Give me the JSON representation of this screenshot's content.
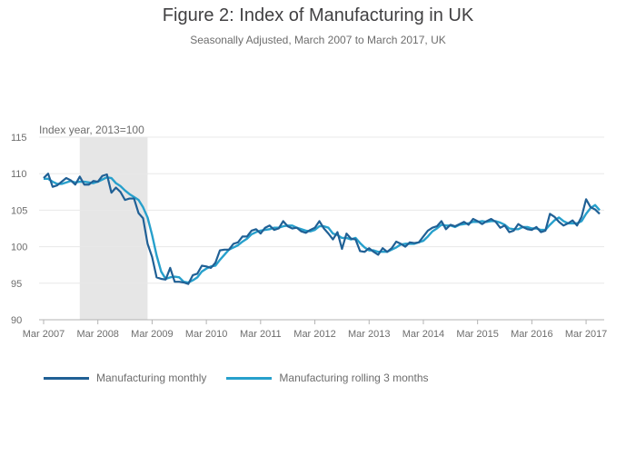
{
  "chart_data": {
    "type": "line",
    "title": "Figure 2: Index of Manufacturing in UK",
    "subtitle": "Seasonally Adjusted, March 2007 to March 2017, UK",
    "ylabel": "Index year, 2013=100",
    "ylim": [
      90,
      115
    ],
    "yticks": [
      90,
      95,
      100,
      105,
      110,
      115
    ],
    "xticks": [
      "Mar 2007",
      "Mar 2008",
      "Mar 2009",
      "Mar 2010",
      "Mar 2011",
      "Mar 2012",
      "Mar 2013",
      "Mar 2014",
      "Mar 2015",
      "Mar 2016",
      "Mar 2017"
    ],
    "recession_shade": {
      "start_month_index": 8,
      "end_month_index": 23
    },
    "series": [
      {
        "name": "Manufacturing monthly",
        "color": "#206095",
        "values": [
          109.4,
          110.0,
          108.2,
          108.4,
          108.9,
          109.4,
          109.1,
          108.5,
          109.6,
          108.5,
          108.5,
          109.0,
          108.9,
          109.7,
          109.9,
          107.4,
          108.1,
          107.5,
          106.4,
          106.6,
          106.6,
          104.6,
          103.9,
          100.4,
          98.6,
          95.8,
          95.6,
          95.5,
          97.1,
          95.2,
          95.2,
          95.1,
          94.9,
          96.1,
          96.3,
          97.4,
          97.3,
          97.1,
          97.8,
          99.5,
          99.6,
          99.6,
          100.4,
          100.6,
          101.4,
          101.4,
          102.2,
          102.4,
          101.8,
          102.6,
          102.9,
          102.3,
          102.5,
          103.5,
          102.8,
          102.5,
          102.6,
          102.1,
          101.9,
          102.3,
          102.6,
          103.5,
          102.5,
          101.8,
          101.0,
          102.0,
          99.7,
          101.8,
          101.1,
          101.0,
          99.4,
          99.3,
          99.8,
          99.3,
          98.9,
          99.8,
          99.3,
          99.8,
          100.7,
          100.4,
          100.0,
          100.6,
          100.5,
          100.6,
          101.4,
          102.2,
          102.6,
          102.8,
          103.5,
          102.4,
          103.0,
          102.8,
          103.1,
          103.4,
          103.0,
          103.8,
          103.5,
          103.1,
          103.5,
          103.8,
          103.4,
          102.6,
          102.9,
          102.0,
          102.2,
          103.1,
          102.7,
          102.4,
          102.3,
          102.7,
          102.0,
          102.2,
          104.5,
          104.1,
          103.4,
          102.9,
          103.2,
          103.6,
          102.9,
          104.1,
          106.5,
          105.4,
          105.1,
          104.5
        ]
      },
      {
        "name": "Manufacturing rolling 3 months",
        "color": "#27a0cc",
        "values": [
          109.3,
          109.3,
          108.9,
          108.6,
          108.6,
          108.8,
          109.0,
          108.8,
          108.9,
          108.9,
          108.8,
          108.7,
          108.9,
          109.2,
          109.5,
          109.4,
          108.7,
          108.3,
          107.7,
          107.2,
          106.8,
          106.4,
          105.4,
          104.0,
          101.6,
          98.8,
          96.6,
          95.6,
          95.8,
          95.9,
          95.8,
          95.2,
          95.1,
          95.4,
          95.8,
          96.6,
          97.0,
          97.3,
          97.4,
          98.2,
          98.9,
          99.6,
          99.9,
          100.2,
          100.7,
          101.1,
          101.7,
          102.0,
          102.2,
          102.3,
          102.4,
          102.6,
          102.6,
          102.8,
          102.9,
          102.9,
          102.6,
          102.4,
          102.2,
          102.1,
          102.3,
          102.8,
          102.8,
          102.6,
          101.8,
          101.6,
          101.2,
          101.2,
          101.0,
          101.2,
          100.5,
          99.9,
          99.5,
          99.5,
          99.3,
          99.3,
          99.3,
          99.6,
          99.9,
          100.3,
          100.4,
          100.4,
          100.4,
          100.6,
          100.8,
          101.4,
          102.1,
          102.5,
          103.0,
          102.9,
          102.9,
          102.7,
          103.0,
          103.1,
          103.2,
          103.4,
          103.4,
          103.5,
          103.4,
          103.5,
          103.5,
          103.3,
          103.0,
          102.5,
          102.4,
          102.4,
          102.7,
          102.7,
          102.5,
          102.5,
          102.3,
          102.3,
          103.0,
          103.6,
          104.0,
          103.5,
          103.2,
          103.2,
          103.2,
          103.5,
          104.5,
          105.3,
          105.7,
          105.0
        ]
      }
    ]
  }
}
